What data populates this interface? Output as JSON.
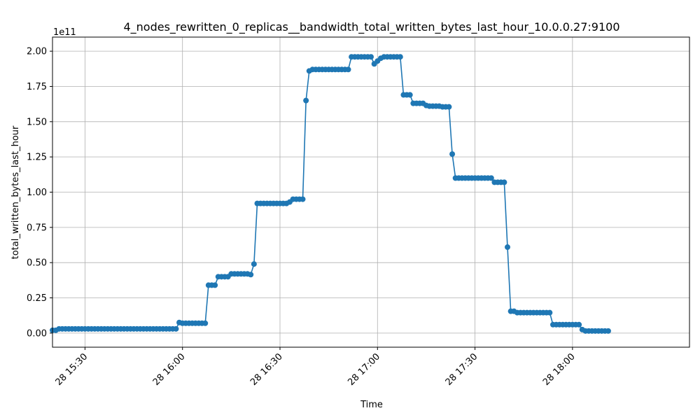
{
  "chart_data": {
    "type": "line",
    "title": "4_nodes_rewritten_0_replicas__bandwidth_total_written_bytes_last_hour_10.0.0.27:9100",
    "xlabel": "Time",
    "ylabel": "total_written_bytes_last_hour",
    "y_offset_label": "1e11",
    "y_scale": 100000000000.0,
    "ylim": [
      -0.1,
      2.1
    ],
    "xlim_minutes": [
      0,
      196
    ],
    "grid": true,
    "line_color": "#1f77b4",
    "x_ticks": [
      {
        "minute": 10,
        "label": "28 15:30"
      },
      {
        "minute": 40,
        "label": "28 16:00"
      },
      {
        "minute": 70,
        "label": "28 16:30"
      },
      {
        "minute": 100,
        "label": "28 17:00"
      },
      {
        "minute": 130,
        "label": "28 17:30"
      },
      {
        "minute": 160,
        "label": "28 18:00"
      }
    ],
    "y_ticks": [
      {
        "value": 0.0,
        "label": "0.00"
      },
      {
        "value": 0.25,
        "label": "0.25"
      },
      {
        "value": 0.5,
        "label": "0.50"
      },
      {
        "value": 0.75,
        "label": "0.75"
      },
      {
        "value": 1.0,
        "label": "1.00"
      },
      {
        "value": 1.25,
        "label": "1.25"
      },
      {
        "value": 1.5,
        "label": "1.50"
      },
      {
        "value": 1.75,
        "label": "1.75"
      },
      {
        "value": 2.0,
        "label": "2.00"
      }
    ],
    "series": [
      {
        "name": "total_written_bytes_last_hour",
        "x_start_time": "28 15:20",
        "step_minutes": 1,
        "values_1e11": [
          0.02,
          0.02,
          0.03,
          0.03,
          0.03,
          0.03,
          0.03,
          0.03,
          0.03,
          0.03,
          0.03,
          0.03,
          0.03,
          0.03,
          0.03,
          0.03,
          0.03,
          0.03,
          0.03,
          0.03,
          0.03,
          0.03,
          0.03,
          0.03,
          0.03,
          0.03,
          0.03,
          0.03,
          0.03,
          0.03,
          0.03,
          0.03,
          0.03,
          0.03,
          0.03,
          0.03,
          0.03,
          0.03,
          0.03,
          0.075,
          0.07,
          0.07,
          0.07,
          0.07,
          0.07,
          0.07,
          0.07,
          0.07,
          0.34,
          0.34,
          0.34,
          0.4,
          0.4,
          0.4,
          0.4,
          0.42,
          0.42,
          0.42,
          0.42,
          0.42,
          0.42,
          0.415,
          0.49,
          0.92,
          0.92,
          0.92,
          0.92,
          0.92,
          0.92,
          0.92,
          0.92,
          0.92,
          0.92,
          0.93,
          0.95,
          0.95,
          0.95,
          0.95,
          1.65,
          1.86,
          1.87,
          1.87,
          1.87,
          1.87,
          1.87,
          1.87,
          1.87,
          1.87,
          1.87,
          1.87,
          1.87,
          1.87,
          1.96,
          1.96,
          1.96,
          1.96,
          1.96,
          1.96,
          1.96,
          1.91,
          1.93,
          1.95,
          1.96,
          1.96,
          1.96,
          1.96,
          1.96,
          1.96,
          1.69,
          1.69,
          1.69,
          1.63,
          1.63,
          1.63,
          1.63,
          1.615,
          1.61,
          1.61,
          1.61,
          1.61,
          1.605,
          1.605,
          1.605,
          1.27,
          1.1,
          1.1,
          1.1,
          1.1,
          1.1,
          1.1,
          1.1,
          1.1,
          1.1,
          1.1,
          1.1,
          1.1,
          1.07,
          1.07,
          1.07,
          1.07,
          0.61,
          0.155,
          0.155,
          0.145,
          0.145,
          0.145,
          0.145,
          0.145,
          0.145,
          0.145,
          0.145,
          0.145,
          0.145,
          0.145,
          0.06,
          0.06,
          0.06,
          0.06,
          0.06,
          0.06,
          0.06,
          0.06,
          0.06,
          0.025,
          0.015,
          0.015,
          0.015,
          0.015,
          0.015,
          0.015,
          0.015,
          0.015
        ]
      }
    ]
  }
}
